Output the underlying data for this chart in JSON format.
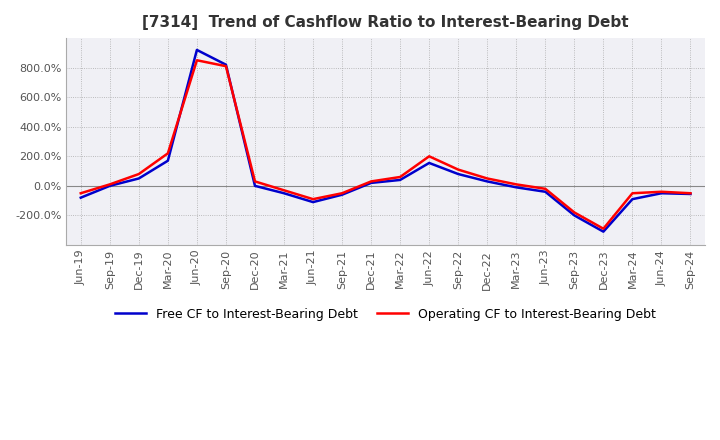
{
  "title": "[7314]  Trend of Cashflow Ratio to Interest-Bearing Debt",
  "x_labels": [
    "Jun-19",
    "Sep-19",
    "Dec-19",
    "Mar-20",
    "Jun-20",
    "Sep-20",
    "Dec-20",
    "Mar-21",
    "Jun-21",
    "Sep-21",
    "Dec-21",
    "Mar-22",
    "Jun-22",
    "Sep-22",
    "Dec-22",
    "Mar-23",
    "Jun-23",
    "Sep-23",
    "Dec-23",
    "Mar-24",
    "Jun-24",
    "Sep-24"
  ],
  "operating_cf": [
    -50,
    10,
    80,
    220,
    850,
    810,
    30,
    -30,
    -90,
    -50,
    30,
    60,
    200,
    110,
    50,
    10,
    -20,
    -180,
    -290,
    -50,
    -40,
    -50
  ],
  "free_cf": [
    -80,
    0,
    50,
    170,
    920,
    820,
    0,
    -50,
    -110,
    -60,
    20,
    40,
    155,
    80,
    30,
    -10,
    -40,
    -200,
    -310,
    -90,
    -50,
    -55
  ],
  "operating_color": "#ff0000",
  "free_color": "#0000cc",
  "ylim": [
    -400,
    1000
  ],
  "yticks": [
    -200,
    0,
    200,
    400,
    600,
    800
  ],
  "background_color": "#ffffff",
  "plot_bg_color": "#f0f0f5",
  "grid_color": "#aaaaaa",
  "legend_operating": "Operating CF to Interest-Bearing Debt",
  "legend_free": "Free CF to Interest-Bearing Debt",
  "title_fontsize": 11,
  "tick_fontsize": 8,
  "linewidth": 1.8
}
